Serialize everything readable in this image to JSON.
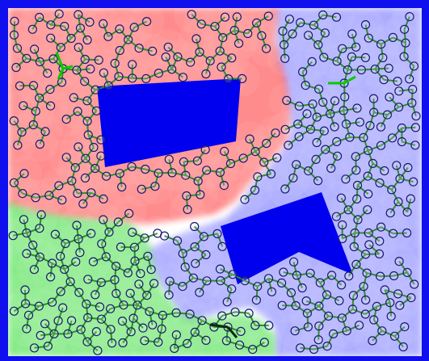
{
  "figure": {
    "colors": {
      "border": "#1010ee",
      "obstacle": "#0000ee",
      "red_region": "#ff3a3a",
      "blue_region": "#3a3aff",
      "green_region": "#22dd22",
      "tree_edge": "#2e8b2e",
      "node_stroke": "#1a1a6e",
      "root_marker": "#00cc00"
    },
    "regions": [
      "red",
      "blue",
      "green"
    ],
    "obstacles": [
      "obstacle-quad",
      "obstacle-notched"
    ],
    "trees": [
      "red-tree",
      "blue-tree",
      "green-tree"
    ],
    "icons": [
      "node-circle-icon",
      "tree-root-icon"
    ]
  }
}
